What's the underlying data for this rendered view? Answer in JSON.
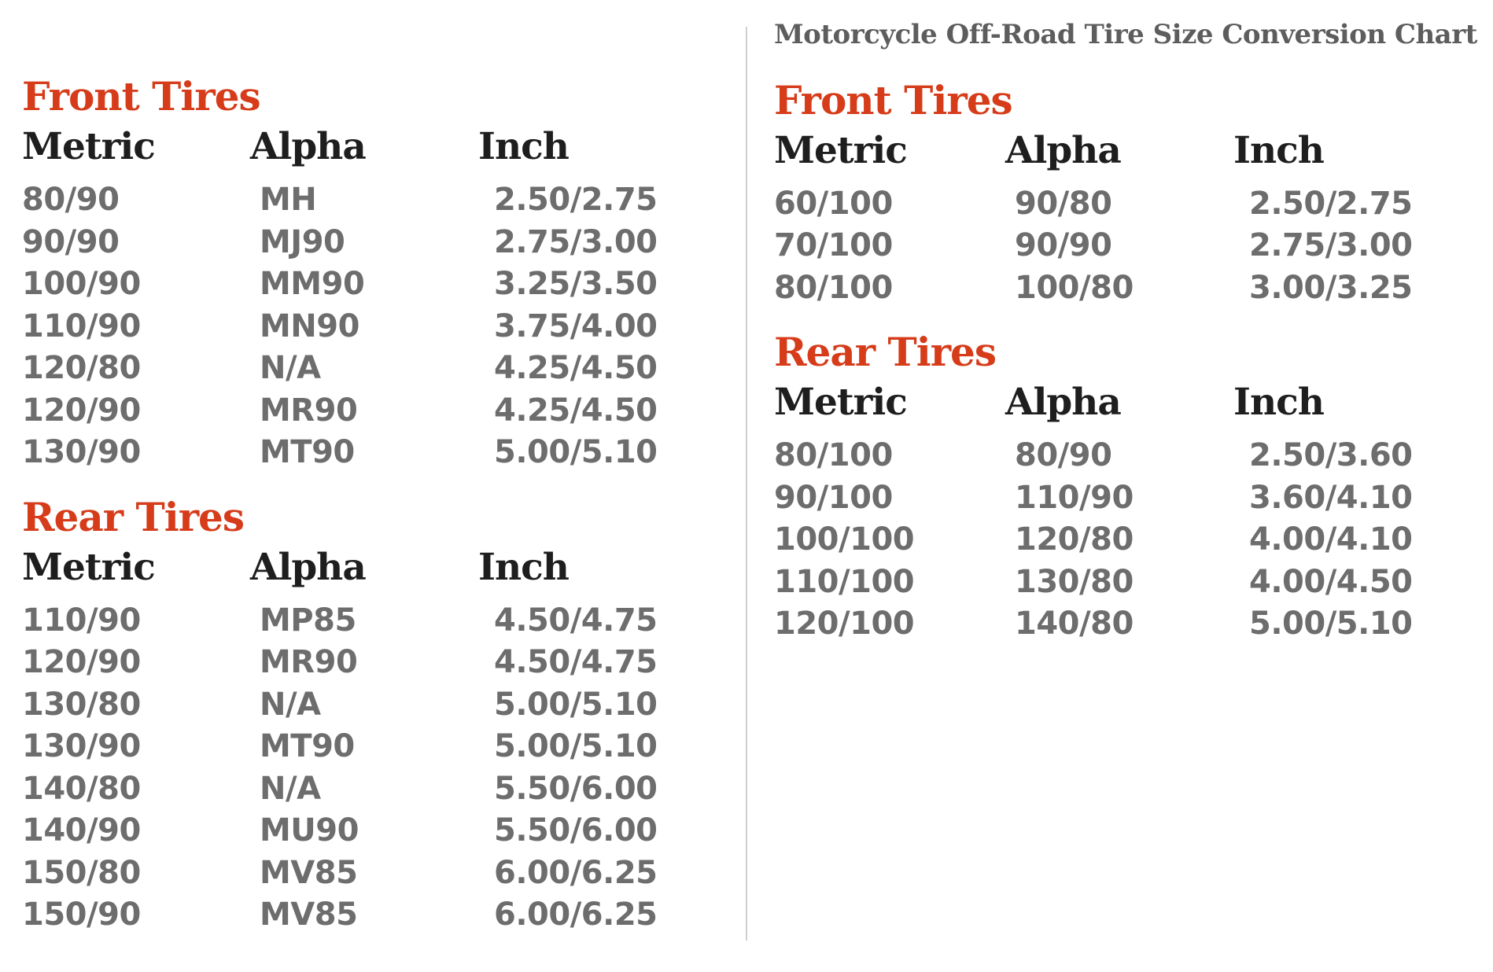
{
  "page_title": "Motorcycle Off-Road Tire Size Conversion Chart",
  "colors": {
    "accent_red": "#d63c1a",
    "header_text": "#1e1e1e",
    "data_text": "#6d6d6d",
    "title_text": "#5d5d5d",
    "divider": "#cfcfcf",
    "background": "#ffffff"
  },
  "chart_data": [
    {
      "type": "table",
      "panel": "left",
      "title": "Front Tires",
      "columns": [
        "Metric",
        "Alpha",
        "Inch"
      ],
      "rows": [
        [
          "80/90",
          "MH",
          "2.50/2.75"
        ],
        [
          "90/90",
          "MJ90",
          "2.75/3.00"
        ],
        [
          "100/90",
          "MM90",
          "3.25/3.50"
        ],
        [
          "110/90",
          "MN90",
          "3.75/4.00"
        ],
        [
          "120/80",
          "N/A",
          "4.25/4.50"
        ],
        [
          "120/90",
          "MR90",
          "4.25/4.50"
        ],
        [
          "130/90",
          "MT90",
          "5.00/5.10"
        ]
      ]
    },
    {
      "type": "table",
      "panel": "left",
      "title": "Rear Tires",
      "columns": [
        "Metric",
        "Alpha",
        "Inch"
      ],
      "rows": [
        [
          "110/90",
          "MP85",
          "4.50/4.75"
        ],
        [
          "120/90",
          "MR90",
          "4.50/4.75"
        ],
        [
          "130/80",
          "N/A",
          "5.00/5.10"
        ],
        [
          "130/90",
          "MT90",
          "5.00/5.10"
        ],
        [
          "140/80",
          "N/A",
          "5.50/6.00"
        ],
        [
          "140/90",
          "MU90",
          "5.50/6.00"
        ],
        [
          "150/80",
          "MV85",
          "6.00/6.25"
        ],
        [
          "150/90",
          "MV85",
          "6.00/6.25"
        ]
      ]
    },
    {
      "type": "table",
      "panel": "right",
      "title": "Front Tires",
      "columns": [
        "Metric",
        "Alpha",
        "Inch"
      ],
      "rows": [
        [
          "60/100",
          "90/80",
          "2.50/2.75"
        ],
        [
          "70/100",
          "90/90",
          "2.75/3.00"
        ],
        [
          "80/100",
          "100/80",
          "3.00/3.25"
        ]
      ]
    },
    {
      "type": "table",
      "panel": "right",
      "title": "Rear Tires",
      "columns": [
        "Metric",
        "Alpha",
        "Inch"
      ],
      "rows": [
        [
          "80/100",
          "80/90",
          "2.50/3.60"
        ],
        [
          "90/100",
          "110/90",
          "3.60/4.10"
        ],
        [
          "100/100",
          "120/80",
          "4.00/4.10"
        ],
        [
          "110/100",
          "130/80",
          "4.00/4.50"
        ],
        [
          "120/100",
          "140/80",
          "5.00/5.10"
        ]
      ]
    }
  ]
}
